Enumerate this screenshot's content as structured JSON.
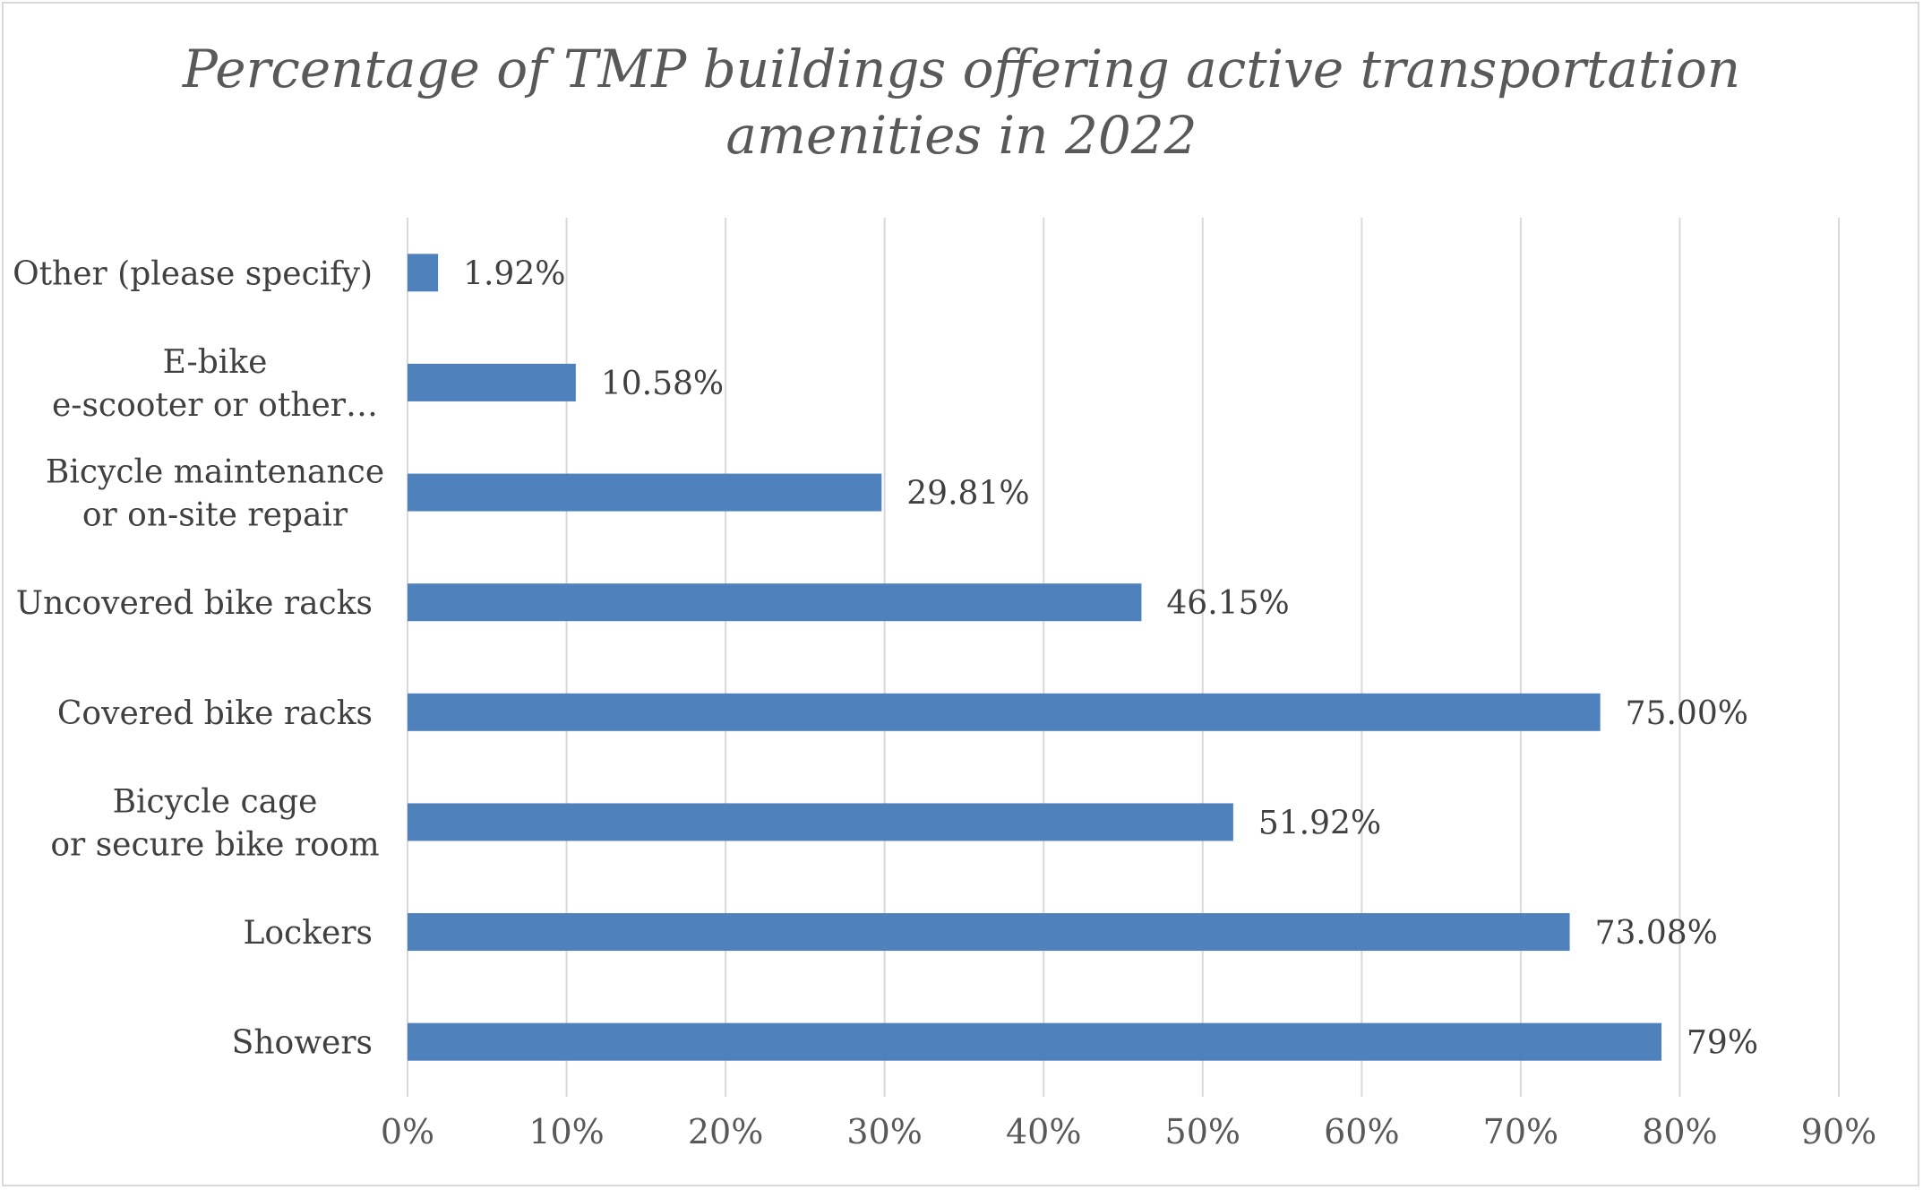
{
  "chart_data": {
    "type": "bar",
    "orientation": "horizontal",
    "title": "Percentage of TMP buildings offering active transportation\namenities in 2022",
    "categories": [
      [
        "Showers"
      ],
      [
        "Lockers"
      ],
      [
        "Bicycle cage",
        "or secure bike room"
      ],
      [
        "Covered bike racks"
      ],
      [
        "Uncovered bike racks"
      ],
      [
        "Bicycle maintenance",
        "or on-site repair"
      ],
      [
        "E-bike",
        "e-scooter or other…"
      ],
      [
        "Other (please specify)"
      ]
    ],
    "values": [
      78.85,
      73.08,
      51.92,
      75.0,
      46.15,
      29.81,
      10.58,
      1.92
    ],
    "data_labels": [
      "79%",
      "73.08%",
      "51.92%",
      "75.00%",
      "46.15%",
      "29.81%",
      "10.58%",
      "1.92%"
    ],
    "xlim": [
      0,
      90
    ],
    "x_ticks": [
      0,
      10,
      20,
      30,
      40,
      50,
      60,
      70,
      80,
      90
    ],
    "x_tick_labels": [
      "0%",
      "10%",
      "20%",
      "30%",
      "40%",
      "50%",
      "60%",
      "70%",
      "80%",
      "90%"
    ],
    "xlabel": "",
    "ylabel": "",
    "grid": true,
    "legend": "none",
    "bar_color": "#4f81bd",
    "grid_color": "#d9d9d9"
  }
}
